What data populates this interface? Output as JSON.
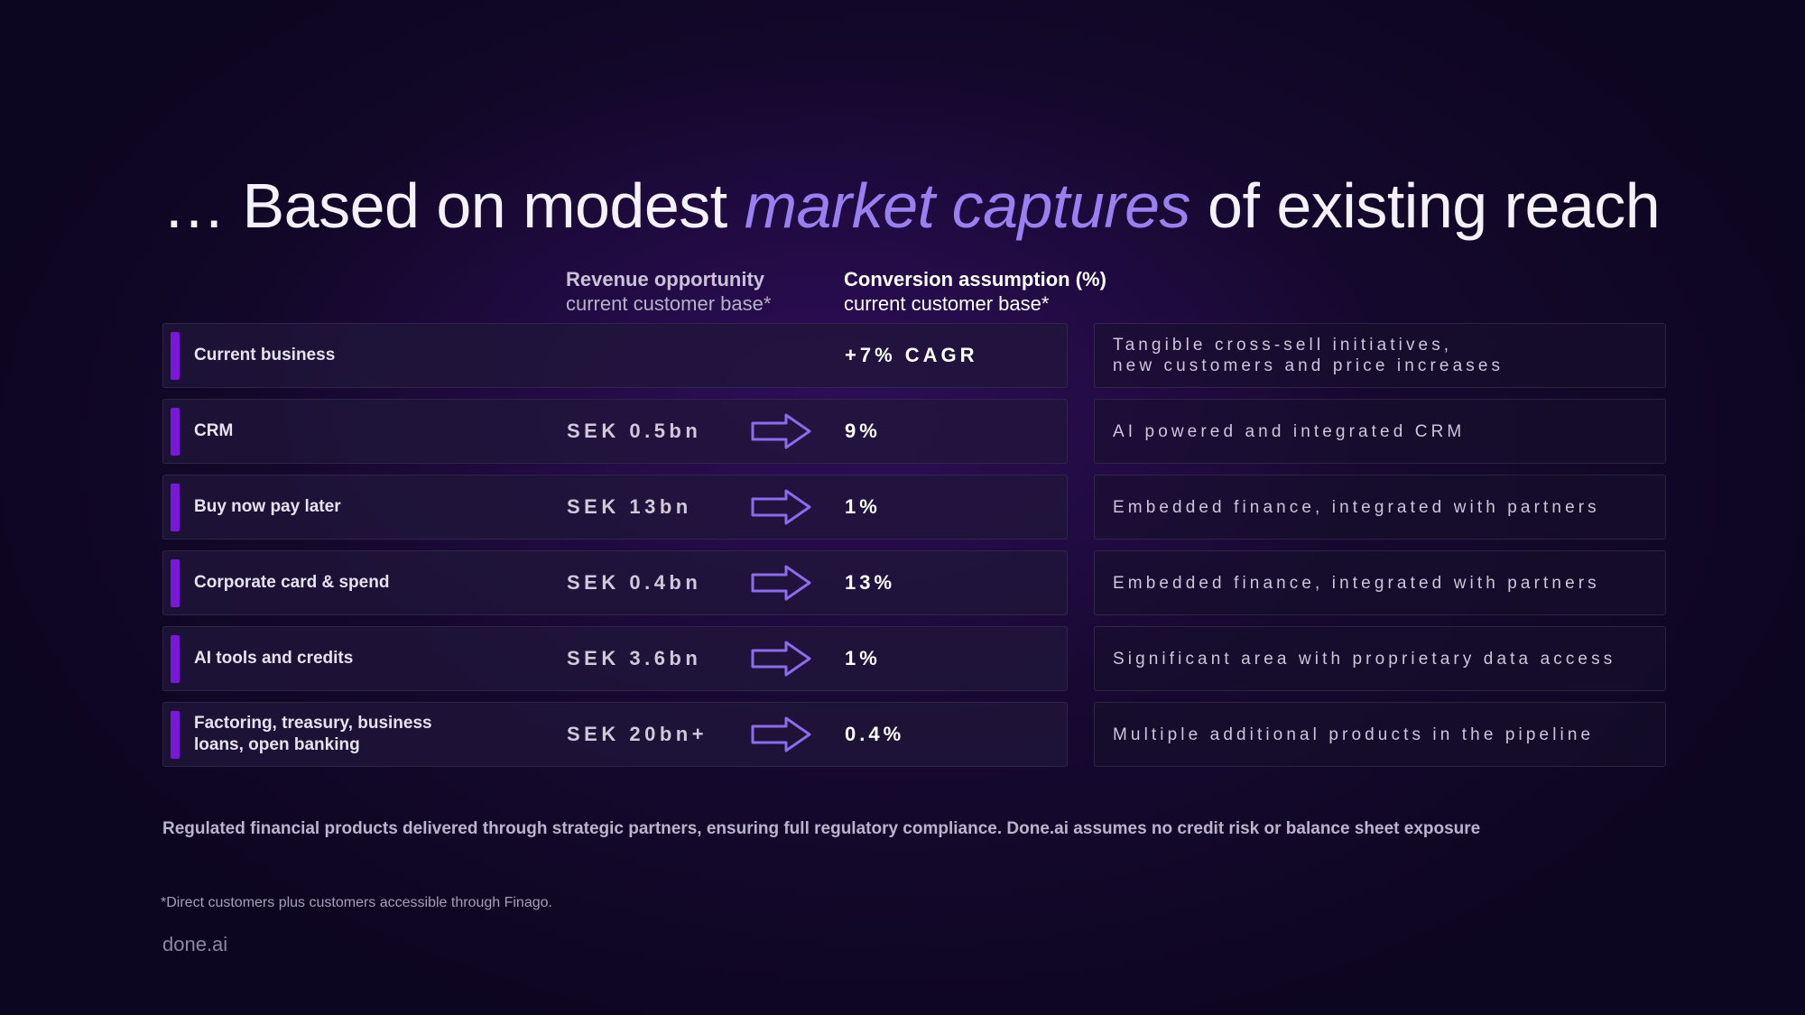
{
  "title": {
    "prefix": "… Based on modest ",
    "highlight": "market captures",
    "suffix": " of existing reach"
  },
  "columns": {
    "revenue": {
      "heading": "Revenue opportunity",
      "subheading": "current customer base*"
    },
    "conversion": {
      "heading": "Conversion assumption (%)",
      "subheading": "current customer base*"
    }
  },
  "rows": [
    {
      "label": "Current business",
      "value": "",
      "has_arrow": false,
      "conversion": "+7% CAGR",
      "description": "Tangible cross-sell initiatives,\nnew customers and price increases"
    },
    {
      "label": "CRM",
      "value": "SEK 0.5bn",
      "has_arrow": true,
      "conversion": "9%",
      "description": "AI powered and integrated CRM"
    },
    {
      "label": "Buy now pay later",
      "value": "SEK 13bn",
      "has_arrow": true,
      "conversion": "1%",
      "description": "Embedded finance, integrated with partners"
    },
    {
      "label": "Corporate card & spend",
      "value": "SEK 0.4bn",
      "has_arrow": true,
      "conversion": "13%",
      "description": "Embedded finance, integrated with partners"
    },
    {
      "label": "AI tools and credits",
      "value": "SEK 3.6bn",
      "has_arrow": true,
      "conversion": "1%",
      "description": "Significant area with proprietary data access"
    },
    {
      "label": "Factoring, treasury, business loans, open banking",
      "value": "SEK 20bn+",
      "has_arrow": true,
      "conversion": "0.4%",
      "description": "Multiple additional products in the pipeline"
    }
  ],
  "disclaimer": "Regulated financial products delivered through strategic partners, ensuring full regulatory compliance. Done.ai assumes no credit risk or balance sheet exposure",
  "footnote": "*Direct customers plus customers accessible through Finago.",
  "logo": "done.ai",
  "colors": {
    "accent": "#9a7ff0",
    "bar": "#7b17d9",
    "arrow": "#8b6cf0"
  },
  "icons": {
    "arrow": "right-arrow-icon"
  }
}
